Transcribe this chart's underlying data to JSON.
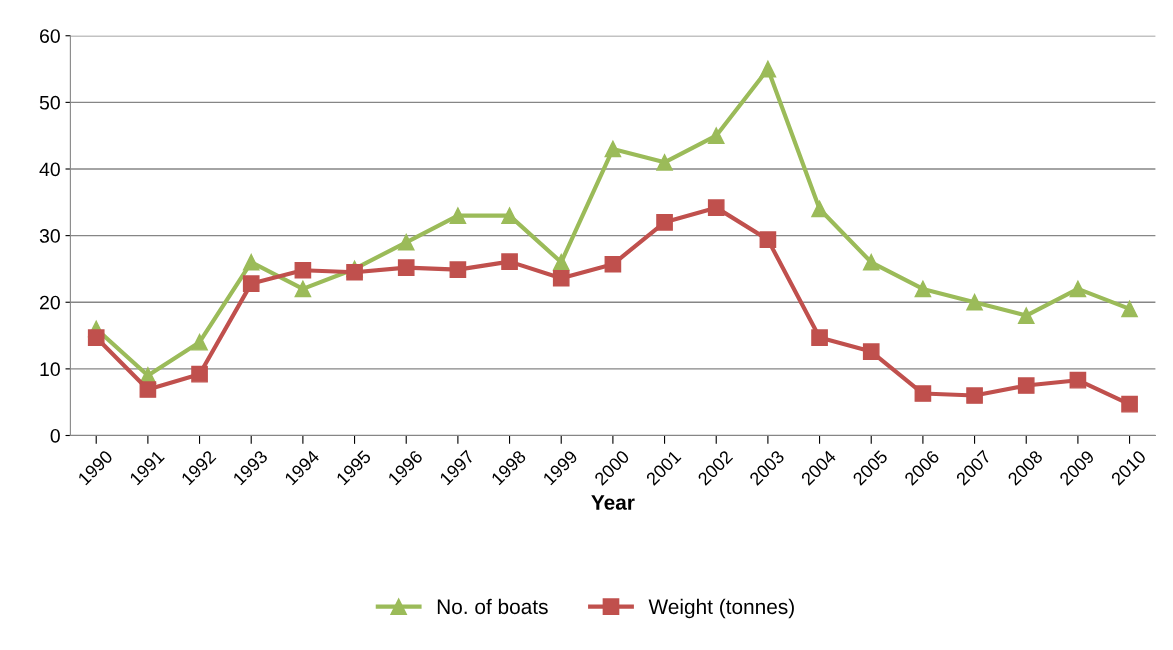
{
  "chart_data": {
    "type": "line",
    "xlabel": "Year",
    "categories": [
      "1990",
      "1991",
      "1992",
      "1993",
      "1994",
      "1995",
      "1996",
      "1997",
      "1998",
      "1999",
      "2000",
      "2001",
      "2002",
      "2003",
      "2004",
      "2005",
      "2006",
      "2007",
      "2008",
      "2009",
      "2010"
    ],
    "series": [
      {
        "name": "No. of boats",
        "color": "#9bbb59",
        "marker": "triangle",
        "values": [
          16,
          9,
          14,
          26,
          22,
          25,
          29,
          33,
          33,
          26,
          43,
          41,
          45,
          55,
          34,
          26,
          22,
          20,
          18,
          22,
          19
        ]
      },
      {
        "name": "Weight (tonnes)",
        "color": "#c0504d",
        "marker": "square",
        "values": [
          14.7,
          6.9,
          9.2,
          22.8,
          24.8,
          24.5,
          25.2,
          24.9,
          26.1,
          23.6,
          25.7,
          32,
          34.2,
          29.4,
          14.7,
          12.6,
          6.3,
          6.0,
          7.5,
          8.3,
          4.7
        ]
      }
    ],
    "ylim": [
      0,
      60
    ],
    "yticks": [
      0,
      10,
      20,
      30,
      40,
      50,
      60
    ],
    "grid": "y",
    "legend": "bottom",
    "line_style": "solid"
  }
}
